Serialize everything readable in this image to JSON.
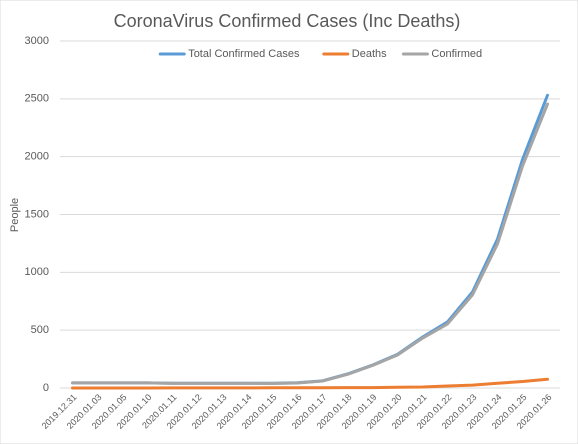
{
  "chart_data": {
    "type": "line",
    "title": "CoronaVirus  Confirmed Cases (Inc Deaths)",
    "y_label": "People",
    "categories": [
      "2019.12.31",
      "2020.01.03",
      "2020.01.05",
      "2020.01.10",
      "2020.01.11",
      "2020.01.12",
      "2020.01.13",
      "2020.01.14",
      "2020.01.15",
      "2020.01.16",
      "2020.01.17",
      "2020.01.18",
      "2020.01.19",
      "2020.01.20",
      "2020.01.21",
      "2020.01.22",
      "2020.01.23",
      "2020.01.24",
      "2020.01.25",
      "2020.01.26"
    ],
    "series": [
      {
        "name": "Total Confirmed Cases",
        "color": "#5b9bd5",
        "values": [
          44,
          44,
          44,
          44,
          41,
          41,
          41,
          41,
          41,
          45,
          62,
          121,
          198,
          291,
          440,
          571,
          830,
          1287,
          1975,
          2531
        ]
      },
      {
        "name": "Deaths",
        "color": "#ed7d31",
        "values": [
          0,
          0,
          0,
          0,
          1,
          1,
          1,
          1,
          2,
          2,
          2,
          3,
          3,
          6,
          9,
          17,
          25,
          41,
          56,
          76
        ]
      },
      {
        "name": "Confirmed",
        "color": "#a5a5a5",
        "values": [
          44,
          44,
          44,
          44,
          40,
          40,
          40,
          40,
          39,
          43,
          60,
          118,
          195,
          285,
          431,
          554,
          805,
          1246,
          1919,
          2455
        ]
      }
    ],
    "ylim": [
      0,
      3000
    ],
    "yticks": [
      0,
      500,
      1000,
      1500,
      2000,
      2500,
      3000
    ],
    "grid": true,
    "legend": "top"
  }
}
